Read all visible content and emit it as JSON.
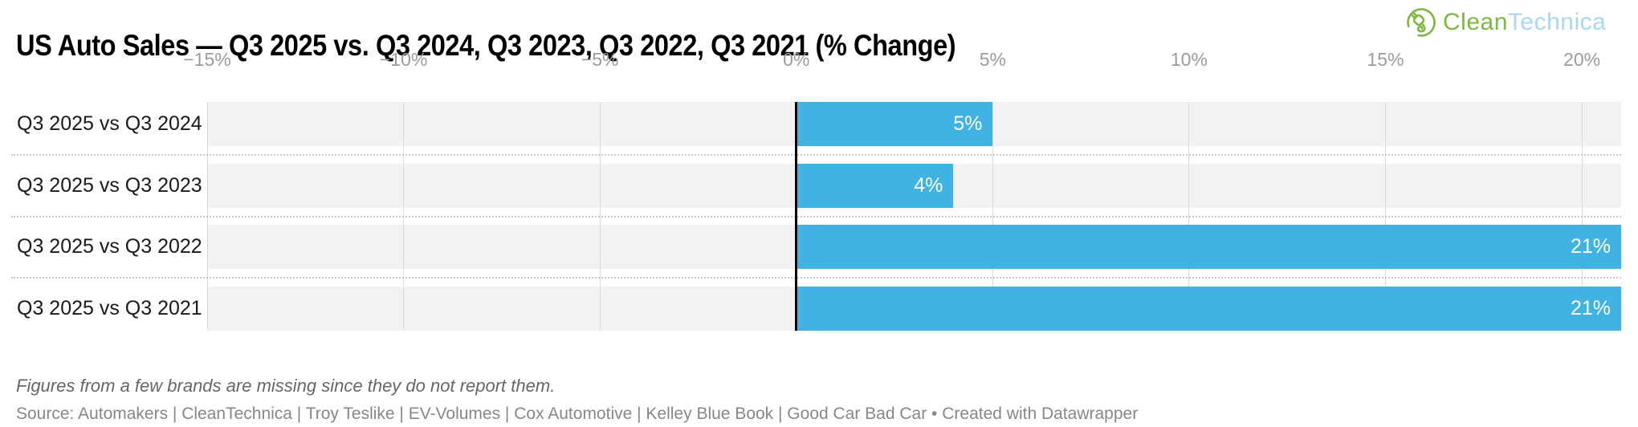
{
  "header": {
    "title": "US Auto Sales — Q3 2025 vs. Q3 2024, Q3 2023, Q3 2022, Q3 2021 (% Change)",
    "logo": {
      "icon": "plug-circle-icon",
      "text_green": "Clean",
      "text_blue": "Technica",
      "color_green": "#7CB843",
      "color_blue": "#A9D7F2"
    }
  },
  "chart_data": {
    "type": "bar",
    "orientation": "horizontal",
    "title": "US Auto Sales — Q3 2025 vs. Q3 2024, Q3 2023, Q3 2022, Q3 2021 (% Change)",
    "categories": [
      "Q3 2025 vs Q3 2024",
      "Q3 2025 vs Q3 2023",
      "Q3 2025 vs Q3 2022",
      "Q3 2025 vs Q3 2021"
    ],
    "values": [
      5,
      4,
      21,
      21
    ],
    "value_labels": [
      "5%",
      "4%",
      "21%",
      "21%"
    ],
    "xlabel": "",
    "ylabel": "",
    "xlim": [
      -15,
      21
    ],
    "ticks": [
      -15,
      -10,
      -5,
      0,
      5,
      10,
      15,
      20
    ],
    "tick_labels": [
      "−15%",
      "−10%",
      "−5%",
      "0%",
      "5%",
      "10%",
      "15%",
      "20%"
    ],
    "grid": true,
    "legend": "none",
    "colors": {
      "bar": "#41B3E2",
      "row_band": "#F2F2F2",
      "gridline": "#DADADA",
      "zero_line": "#000000",
      "axis_label": "#9B9B9B",
      "row_label": "#1A1A1A",
      "value_label": "#FFFFFF",
      "separator": "#C8C8C8"
    }
  },
  "footer": {
    "note": "Figures from a few brands are missing since they do not report them.",
    "source": "Source: Automakers | CleanTechnica | Troy Teslike | EV-Volumes | Cox Automotive | Kelley Blue Book | Good Car Bad Car • Created with Datawrapper"
  }
}
